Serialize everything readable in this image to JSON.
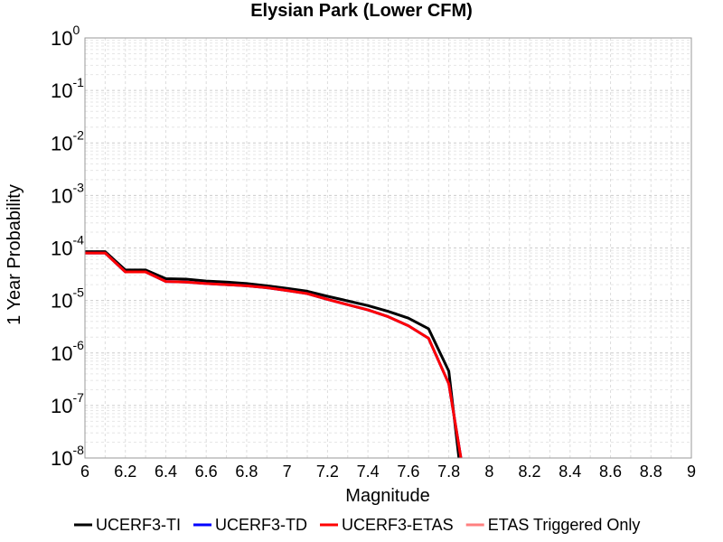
{
  "chart_data": {
    "type": "line",
    "title": "Elysian Park (Lower CFM)",
    "xlabel": "Magnitude",
    "ylabel": "1 Year Probability",
    "xlim": [
      6,
      9
    ],
    "ylim": [
      1e-08,
      1
    ],
    "yscale": "log",
    "grid": true,
    "legend_position": "bottom",
    "x_ticks": [
      "6",
      "6.2",
      "6.4",
      "6.6",
      "6.8",
      "7",
      "7.2",
      "7.4",
      "7.6",
      "7.8",
      "8",
      "8.2",
      "8.4",
      "8.6",
      "8.8",
      "9"
    ],
    "y_ticks": [
      {
        "base": "10",
        "exp": "0",
        "value": 1
      },
      {
        "base": "10",
        "exp": "-1",
        "value": 0.1
      },
      {
        "base": "10",
        "exp": "-2",
        "value": 0.01
      },
      {
        "base": "10",
        "exp": "-3",
        "value": 0.001
      },
      {
        "base": "10",
        "exp": "-4",
        "value": 0.0001
      },
      {
        "base": "10",
        "exp": "-5",
        "value": 1e-05
      },
      {
        "base": "10",
        "exp": "-6",
        "value": 1e-06
      },
      {
        "base": "10",
        "exp": "-7",
        "value": 1e-07
      },
      {
        "base": "10",
        "exp": "-8",
        "value": 1e-08
      }
    ],
    "series": [
      {
        "name": "UCERF3-TI",
        "color": "#000000",
        "x": [
          6.0,
          6.1,
          6.2,
          6.3,
          6.4,
          6.5,
          6.6,
          6.7,
          6.8,
          6.9,
          7.0,
          7.1,
          7.2,
          7.3,
          7.4,
          7.5,
          7.6,
          7.7,
          7.8,
          7.85
        ],
        "y": [
          8.5e-05,
          8.5e-05,
          3.8e-05,
          3.8e-05,
          2.6e-05,
          2.55e-05,
          2.35e-05,
          2.25e-05,
          2.1e-05,
          1.9e-05,
          1.7e-05,
          1.5e-05,
          1.2e-05,
          9.8e-06,
          8e-06,
          6.2e-06,
          4.6e-06,
          2.9e-06,
          4.5e-07,
          1e-08
        ]
      },
      {
        "name": "UCERF3-TD",
        "color": "#0000ff",
        "x": [
          6.0,
          6.1,
          6.2,
          6.3,
          6.4,
          6.5,
          6.6,
          6.7,
          6.8,
          6.9,
          7.0,
          7.1,
          7.2,
          7.3,
          7.4,
          7.5,
          7.6,
          7.7,
          7.8,
          7.86
        ],
        "y": [
          8e-05,
          8e-05,
          3.5e-05,
          3.5e-05,
          2.3e-05,
          2.25e-05,
          2.1e-05,
          2e-05,
          1.9e-05,
          1.75e-05,
          1.55e-05,
          1.35e-05,
          1.05e-05,
          8.3e-06,
          6.6e-06,
          4.9e-06,
          3.3e-06,
          1.9e-06,
          2.6e-07,
          1e-08
        ]
      },
      {
        "name": "UCERF3-ETAS",
        "color": "#ff0000",
        "x": [
          6.0,
          6.1,
          6.2,
          6.3,
          6.4,
          6.5,
          6.6,
          6.7,
          6.8,
          6.9,
          7.0,
          7.1,
          7.2,
          7.3,
          7.4,
          7.5,
          7.6,
          7.7,
          7.8,
          7.86
        ],
        "y": [
          8e-05,
          8e-05,
          3.5e-05,
          3.5e-05,
          2.3e-05,
          2.25e-05,
          2.1e-05,
          2e-05,
          1.9e-05,
          1.75e-05,
          1.55e-05,
          1.35e-05,
          1.05e-05,
          8.3e-06,
          6.6e-06,
          4.9e-06,
          3.3e-06,
          1.9e-06,
          2.6e-07,
          1e-08
        ]
      },
      {
        "name": "ETAS Triggered Only",
        "color": "#ff8080",
        "x": [],
        "y": []
      }
    ]
  }
}
